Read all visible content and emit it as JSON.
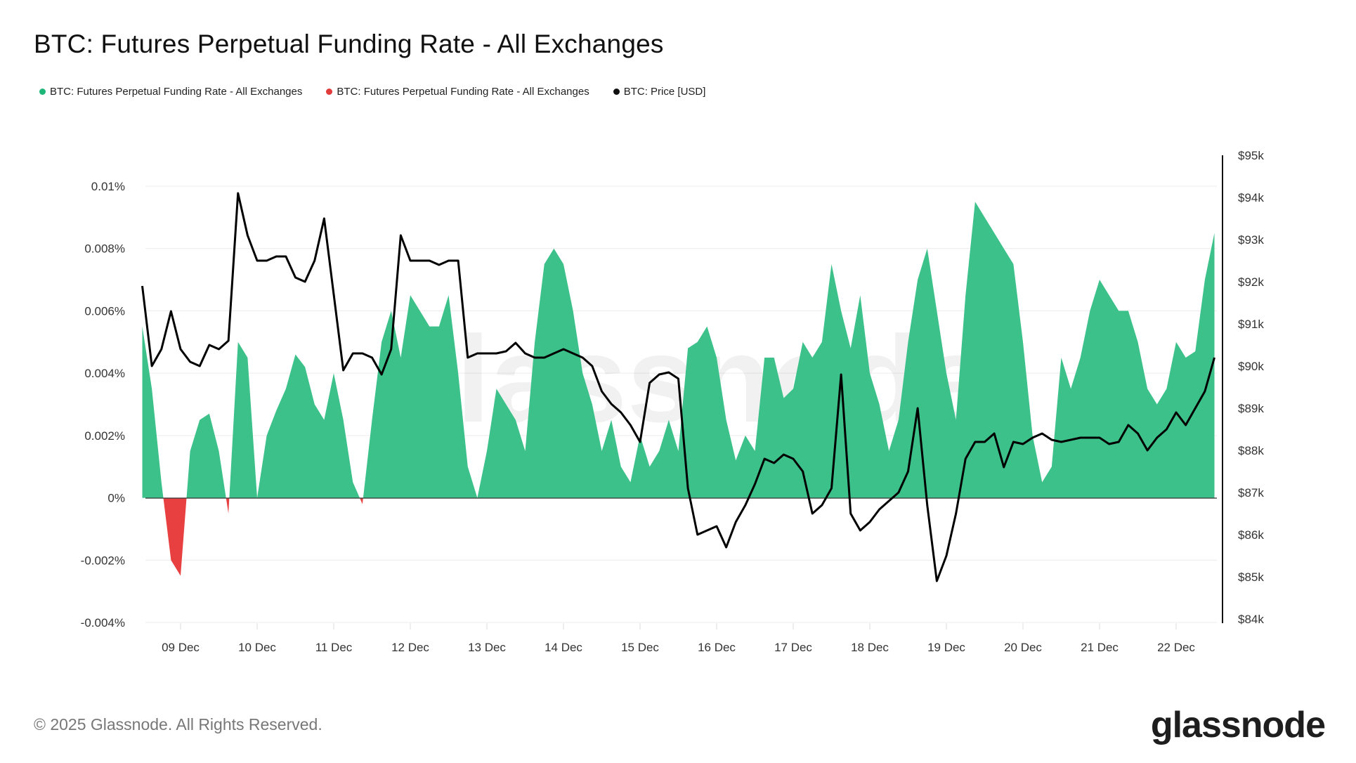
{
  "title": "BTC: Futures Perpetual Funding Rate - All Exchanges",
  "legend": [
    {
      "label": "BTC: Futures Perpetual Funding Rate - All Exchanges",
      "color": "#1fb67a"
    },
    {
      "label": "BTC: Futures Perpetual Funding Rate - All Exchanges",
      "color": "#e23b3b"
    },
    {
      "label": "BTC: Price [USD]",
      "color": "#111111"
    }
  ],
  "footer": "© 2025 Glassnode. All Rights Reserved.",
  "logo": "glassnode",
  "watermark": "glassnode",
  "chart_data": {
    "type": "area",
    "title": "BTC: Futures Perpetual Funding Rate - All Exchanges",
    "grid": true,
    "legend_position": "top-left",
    "colors": {
      "positive": "#3cc18a",
      "negative": "#e84040",
      "price": "#000000"
    },
    "x_ticks": [
      "09 Dec",
      "10 Dec",
      "11 Dec",
      "12 Dec",
      "13 Dec",
      "14 Dec",
      "15 Dec",
      "16 Dec",
      "17 Dec",
      "18 Dec",
      "19 Dec",
      "20 Dec",
      "21 Dec",
      "22 Dec"
    ],
    "y_left": {
      "ticks": [
        "0.01%",
        "0.008%",
        "0.006%",
        "0.004%",
        "0.002%",
        "0%",
        "-0.002%",
        "-0.004%"
      ],
      "range": [
        -0.004,
        0.01
      ],
      "unit": "%"
    },
    "y_right": {
      "ticks": [
        "$95k",
        "$94k",
        "$93k",
        "$92k",
        "$91k",
        "$90k",
        "$89k",
        "$88k",
        "$87k",
        "$86k",
        "$85k",
        "$84k"
      ],
      "range": [
        84000,
        95000
      ],
      "scale": "linear"
    },
    "x": [
      "2025-12-08T12:00",
      "2025-12-08T15:00",
      "2025-12-08T18:00",
      "2025-12-08T21:00",
      "2025-12-09T00:00",
      "2025-12-09T03:00",
      "2025-12-09T06:00",
      "2025-12-09T09:00",
      "2025-12-09T12:00",
      "2025-12-09T15:00",
      "2025-12-09T18:00",
      "2025-12-09T21:00",
      "2025-12-10T00:00",
      "2025-12-10T03:00",
      "2025-12-10T06:00",
      "2025-12-10T09:00",
      "2025-12-10T12:00",
      "2025-12-10T15:00",
      "2025-12-10T18:00",
      "2025-12-10T21:00",
      "2025-12-11T00:00",
      "2025-12-11T03:00",
      "2025-12-11T06:00",
      "2025-12-11T09:00",
      "2025-12-11T12:00",
      "2025-12-11T15:00",
      "2025-12-11T18:00",
      "2025-12-11T21:00",
      "2025-12-12T00:00",
      "2025-12-12T03:00",
      "2025-12-12T06:00",
      "2025-12-12T09:00",
      "2025-12-12T12:00",
      "2025-12-12T15:00",
      "2025-12-12T18:00",
      "2025-12-12T21:00",
      "2025-12-13T00:00",
      "2025-12-13T03:00",
      "2025-12-13T06:00",
      "2025-12-13T09:00",
      "2025-12-13T12:00",
      "2025-12-13T15:00",
      "2025-12-13T18:00",
      "2025-12-13T21:00",
      "2025-12-14T00:00",
      "2025-12-14T03:00",
      "2025-12-14T06:00",
      "2025-12-14T09:00",
      "2025-12-14T12:00",
      "2025-12-14T15:00",
      "2025-12-14T18:00",
      "2025-12-14T21:00",
      "2025-12-15T00:00",
      "2025-12-15T03:00",
      "2025-12-15T06:00",
      "2025-12-15T09:00",
      "2025-12-15T12:00",
      "2025-12-15T15:00",
      "2025-12-15T18:00",
      "2025-12-15T21:00",
      "2025-12-16T00:00",
      "2025-12-16T03:00",
      "2025-12-16T06:00",
      "2025-12-16T09:00",
      "2025-12-16T12:00",
      "2025-12-16T15:00",
      "2025-12-16T18:00",
      "2025-12-16T21:00",
      "2025-12-17T00:00",
      "2025-12-17T03:00",
      "2025-12-17T06:00",
      "2025-12-17T09:00",
      "2025-12-17T12:00",
      "2025-12-17T15:00",
      "2025-12-17T18:00",
      "2025-12-17T21:00",
      "2025-12-18T00:00",
      "2025-12-18T03:00",
      "2025-12-18T06:00",
      "2025-12-18T09:00",
      "2025-12-18T12:00",
      "2025-12-18T15:00",
      "2025-12-18T18:00",
      "2025-12-18T21:00",
      "2025-12-19T00:00",
      "2025-12-19T03:00",
      "2025-12-19T06:00",
      "2025-12-19T09:00",
      "2025-12-19T12:00",
      "2025-12-19T15:00",
      "2025-12-19T18:00",
      "2025-12-19T21:00",
      "2025-12-20T00:00",
      "2025-12-20T03:00",
      "2025-12-20T06:00",
      "2025-12-20T09:00",
      "2025-12-20T12:00",
      "2025-12-20T15:00",
      "2025-12-20T18:00",
      "2025-12-20T21:00",
      "2025-12-21T00:00",
      "2025-12-21T03:00",
      "2025-12-21T06:00",
      "2025-12-21T09:00",
      "2025-12-21T12:00",
      "2025-12-21T15:00",
      "2025-12-21T18:00",
      "2025-12-21T21:00",
      "2025-12-22T00:00",
      "2025-12-22T03:00",
      "2025-12-22T06:00",
      "2025-12-22T09:00",
      "2025-12-22T12:00"
    ],
    "series": [
      {
        "name": "BTC: Futures Perpetual Funding Rate - All Exchanges",
        "axis": "left",
        "unit": "%",
        "values": [
          0.0055,
          0.0035,
          0.0005,
          -0.002,
          -0.0025,
          0.0015,
          0.0025,
          0.0027,
          0.0015,
          -0.0005,
          0.005,
          0.0045,
          0.0,
          0.002,
          0.0028,
          0.0035,
          0.0046,
          0.0042,
          0.003,
          0.0025,
          0.004,
          0.0025,
          0.0005,
          -0.0002,
          0.0025,
          0.005,
          0.006,
          0.0045,
          0.0065,
          0.006,
          0.0055,
          0.0055,
          0.0065,
          0.004,
          0.001,
          0.0,
          0.0015,
          0.0035,
          0.003,
          0.0025,
          0.0015,
          0.005,
          0.0075,
          0.008,
          0.0075,
          0.006,
          0.004,
          0.003,
          0.0015,
          0.0025,
          0.001,
          0.0005,
          0.002,
          0.001,
          0.0015,
          0.0025,
          0.0015,
          0.0048,
          0.005,
          0.0055,
          0.0045,
          0.0025,
          0.0012,
          0.002,
          0.0015,
          0.0045,
          0.0045,
          0.0032,
          0.0035,
          0.005,
          0.0045,
          0.005,
          0.0075,
          0.006,
          0.0048,
          0.0065,
          0.004,
          0.003,
          0.0015,
          0.0025,
          0.005,
          0.007,
          0.008,
          0.006,
          0.004,
          0.0025,
          0.0065,
          0.0095,
          0.009,
          0.0085,
          0.008,
          0.0075,
          0.005,
          0.002,
          0.0005,
          0.001,
          0.0045,
          0.0035,
          0.0045,
          0.006,
          0.007,
          0.0065,
          0.006,
          0.006,
          0.005,
          0.0035,
          0.003,
          0.0035,
          0.005,
          0.0045,
          0.0047,
          0.007,
          0.0085
        ]
      },
      {
        "name": "BTC: Price [USD]",
        "axis": "right",
        "unit": "USD",
        "values": [
          91900,
          90000,
          90400,
          91300,
          90400,
          90100,
          90000,
          90500,
          90400,
          90600,
          94100,
          93100,
          92500,
          92500,
          92600,
          92600,
          92100,
          92000,
          92500,
          93500,
          91700,
          89900,
          90300,
          90300,
          90200,
          89800,
          90400,
          93100,
          92500,
          92500,
          92500,
          92400,
          92500,
          92500,
          90200,
          90300,
          90300,
          90300,
          90350,
          90550,
          90300,
          90200,
          90200,
          90300,
          90400,
          90300,
          90200,
          90000,
          89400,
          89100,
          88900,
          88600,
          88200,
          89600,
          89800,
          89850,
          89700,
          87100,
          86000,
          86100,
          86200,
          85700,
          86300,
          86700,
          87200,
          87800,
          87700,
          87900,
          87800,
          87500,
          86500,
          86700,
          87100,
          89800,
          86500,
          86100,
          86300,
          86600,
          86800,
          87000,
          87500,
          89000,
          86700,
          84900,
          85500,
          86500,
          87800,
          88200,
          88200,
          88400,
          87600,
          88200,
          88150,
          88300,
          88400,
          88250,
          88200,
          88250,
          88300,
          88300,
          88300,
          88150,
          88200,
          88600,
          88400,
          88000,
          88300,
          88500,
          88900,
          88600,
          89000,
          89400,
          90200
        ]
      }
    ]
  }
}
